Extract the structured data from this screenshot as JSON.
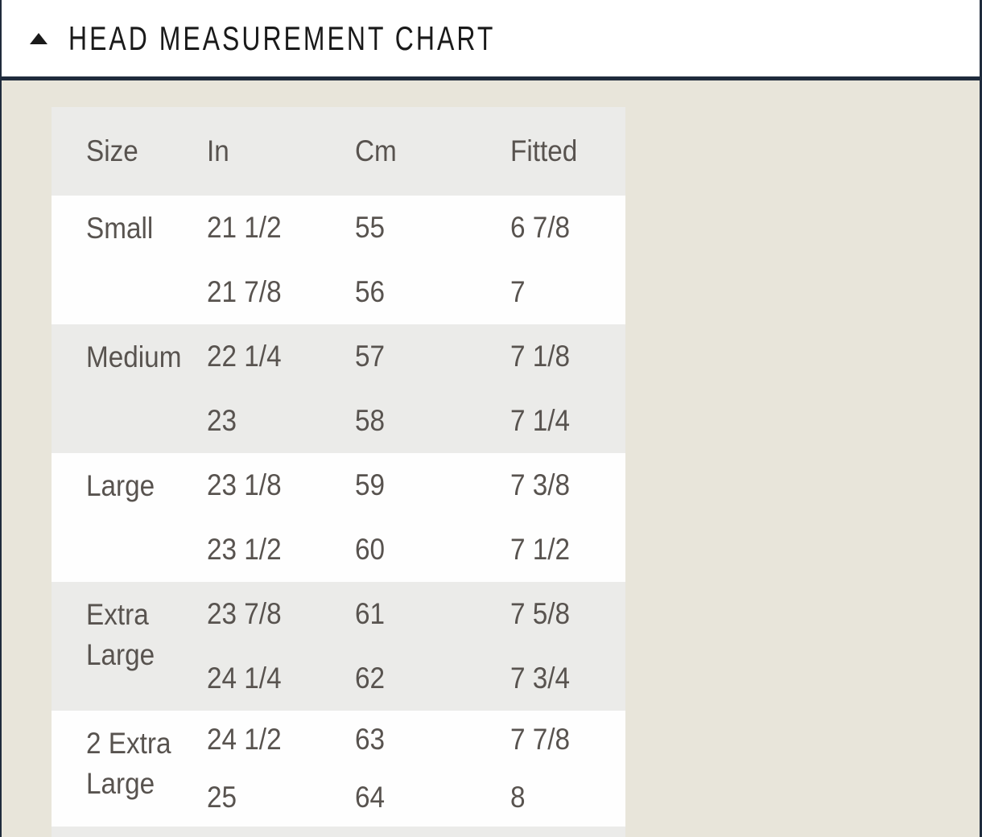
{
  "header": {
    "title": "HEAD MEASUREMENT CHART",
    "collapse_icon": "triangle-up-icon",
    "expanded": true
  },
  "table": {
    "columns": [
      "Size",
      "In",
      "Cm",
      "Fitted"
    ],
    "groups": [
      {
        "size": "Small",
        "rows": [
          [
            "21 1/2",
            "55",
            "6 7/8"
          ],
          [
            "21 7/8",
            "56",
            "7"
          ]
        ]
      },
      {
        "size": "Medium",
        "rows": [
          [
            "22 1/4",
            "57",
            "7 1/8"
          ],
          [
            "23",
            "58",
            "7 1/4"
          ]
        ]
      },
      {
        "size": "Large",
        "rows": [
          [
            "23 1/8",
            "59",
            "7 3/8"
          ],
          [
            "23 1/2",
            "60",
            "7 1/2"
          ]
        ]
      },
      {
        "size": "Extra Large",
        "rows": [
          [
            "23 7/8",
            "61",
            "7 5/8"
          ],
          [
            "24 1/4",
            "62",
            "7 3/4"
          ]
        ]
      },
      {
        "size": "2 Extra Large",
        "rows": [
          [
            "24 1/2",
            "63",
            "7 7/8"
          ],
          [
            "25",
            "64",
            "8"
          ]
        ]
      }
    ]
  },
  "colors": {
    "accent_navy": "#1f2b3c",
    "page_beige": "#e8e5da",
    "row_gray": "#ebebe9",
    "row_white": "#fefefe",
    "title_text": "#1a1a1a",
    "table_text": "#58534f"
  }
}
